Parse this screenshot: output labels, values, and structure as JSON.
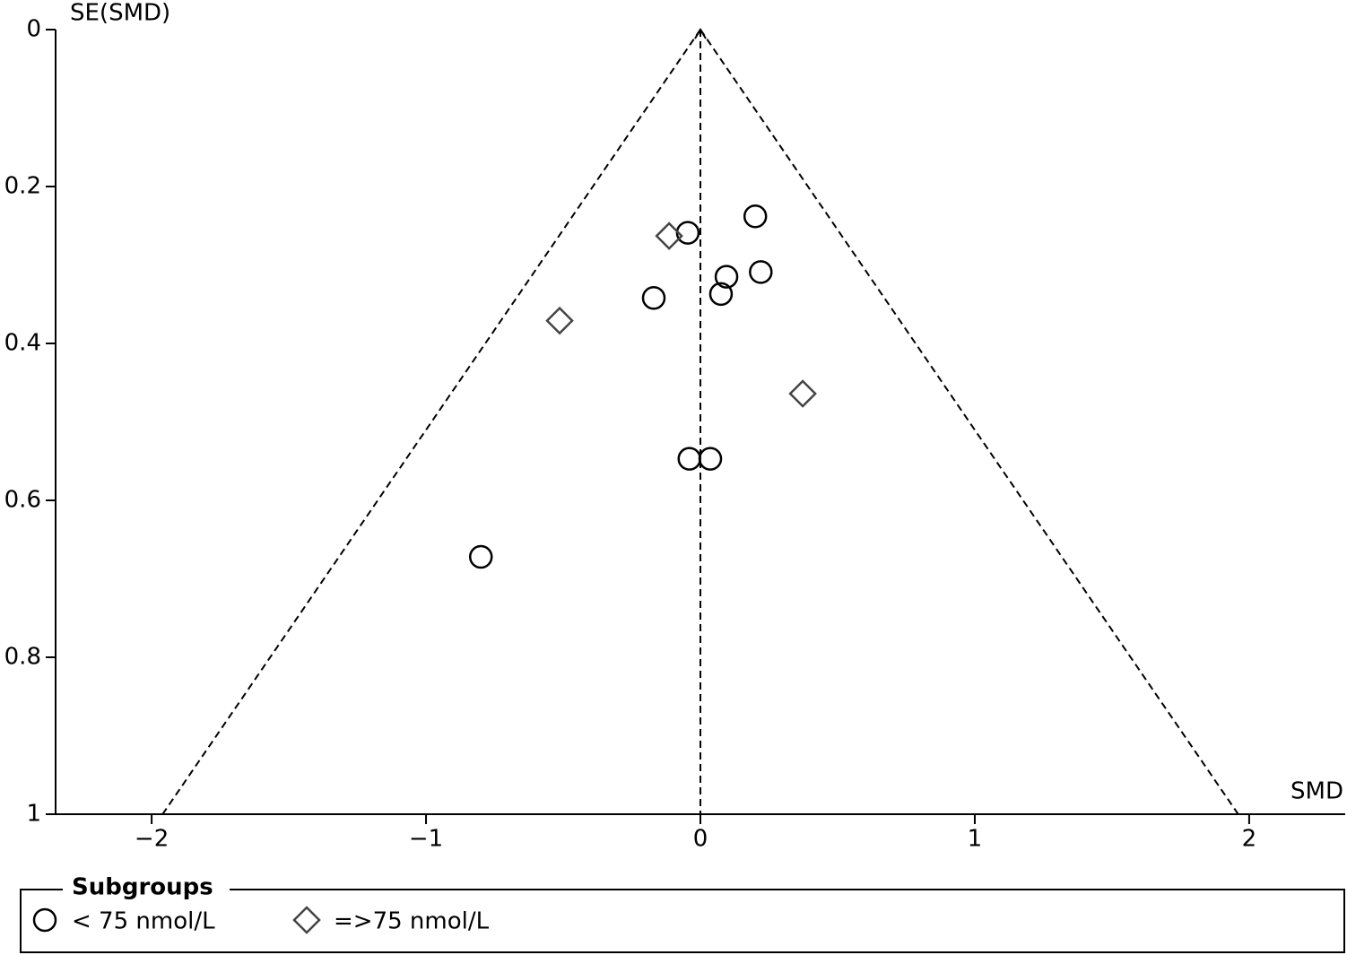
{
  "chart_data": {
    "type": "scatter",
    "xlabel": "SMD",
    "ylabel": "SE(SMD)",
    "xlim": [
      -2.35,
      2.35
    ],
    "ylim": [
      1,
      0
    ],
    "xticks": [
      {
        "value": -2,
        "label": "−2"
      },
      {
        "value": -1,
        "label": "−1"
      },
      0,
      1,
      2
    ],
    "yticks": [
      0,
      0.2,
      0.4,
      0.6,
      0.8,
      1
    ],
    "funnel": {
      "center": 0,
      "limits_at_bottom": [
        -1.96,
        1.96
      ]
    },
    "legend_title": "Subgroups",
    "legend": "bottom",
    "series": [
      {
        "name": "< 75 nmol/L",
        "marker": "circle",
        "color": "#000000",
        "x": [
          0.2,
          -0.046,
          0.095,
          0.22,
          0.075,
          -0.17,
          -0.04,
          0.036,
          -0.8
        ],
        "values": [
          0.238,
          0.259,
          0.315,
          0.309,
          0.337,
          0.342,
          0.547,
          0.547,
          0.672
        ]
      },
      {
        "name": "=>75 nmol/L",
        "marker": "diamond",
        "color": "#444444",
        "x": [
          -0.114,
          -0.513,
          0.373
        ],
        "values": [
          0.263,
          0.371,
          0.464
        ]
      }
    ]
  }
}
